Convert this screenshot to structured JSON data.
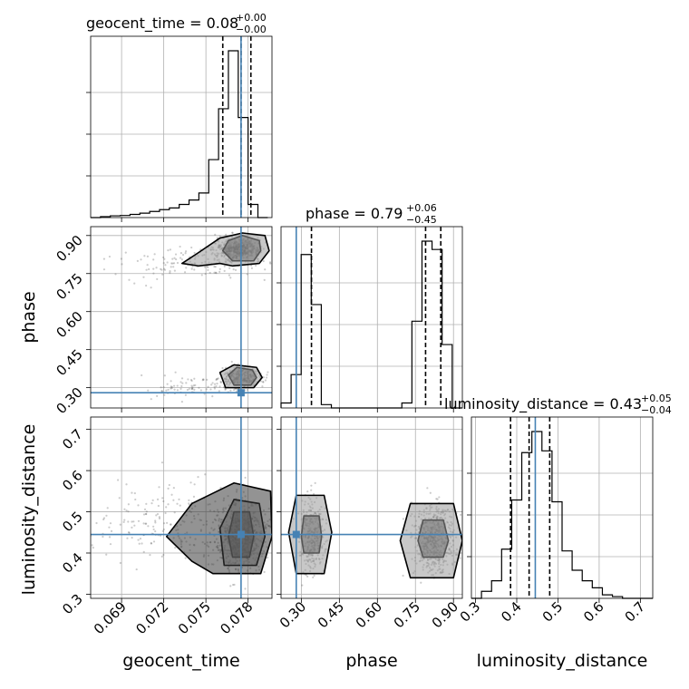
{
  "chart_data": {
    "type": "corner",
    "parameters": [
      "geocent_time",
      "phase",
      "luminosity_distance"
    ],
    "truth": {
      "geocent_time": 0.0775,
      "phase": 0.28,
      "luminosity_distance": 0.445
    },
    "axes": {
      "geocent_time": {
        "lim": [
          0.0668,
          0.0797
        ],
        "ticks": [
          "0.069",
          "0.072",
          "0.075",
          "0.078"
        ]
      },
      "phase": {
        "lim": [
          0.22,
          0.935
        ],
        "ticks": [
          "0.30",
          "0.45",
          "0.60",
          "0.75",
          "0.90"
        ]
      },
      "luminosity_distance": {
        "lim": [
          0.29,
          0.73
        ],
        "ticks": [
          "0.3",
          "0.4",
          "0.5",
          "0.6",
          "0.7"
        ]
      }
    },
    "titles": [
      {
        "param": "geocent_time",
        "label": "geocent_time = 0.08",
        "plus": "+0.00",
        "minus": "−0.00",
        "quantiles": [
          0.0762,
          0.0775,
          0.0782
        ]
      },
      {
        "param": "phase",
        "label": "phase = 0.79",
        "plus": "+0.06",
        "minus": "−0.45",
        "quantiles": [
          0.34,
          0.79,
          0.85
        ]
      },
      {
        "param": "luminosity_distance",
        "label": "luminosity_distance = 0.43",
        "plus": "+0.05",
        "minus": "−0.04",
        "quantiles": [
          0.385,
          0.43,
          0.48
        ]
      }
    ],
    "histograms": {
      "geocent_time": {
        "edges": [
          0.0668,
          0.0675,
          0.0682,
          0.0689,
          0.0696,
          0.0703,
          0.071,
          0.0717,
          0.0724,
          0.0731,
          0.0738,
          0.0745,
          0.0752,
          0.0759,
          0.0766,
          0.0773,
          0.078,
          0.0787,
          0.0794
        ],
        "counts": [
          0.0,
          0.005,
          0.01,
          0.012,
          0.018,
          0.025,
          0.035,
          0.045,
          0.055,
          0.075,
          0.1,
          0.14,
          0.33,
          0.62,
          0.95,
          0.57,
          0.075,
          0.0
        ]
      },
      "phase": {
        "edges": [
          0.22,
          0.2597,
          0.2994,
          0.3391,
          0.3788,
          0.4185,
          0.4582,
          0.4979,
          0.5376,
          0.5773,
          0.617,
          0.6567,
          0.6964,
          0.7361,
          0.7758,
          0.8155,
          0.8552,
          0.8949,
          0.935
        ],
        "counts": [
          0.03,
          0.2,
          0.92,
          0.62,
          0.02,
          0.0,
          0.0,
          0.0,
          0.0,
          0.0,
          0.0,
          0.0,
          0.03,
          0.52,
          1.0,
          0.95,
          0.38,
          0.0
        ]
      },
      "luminosity_distance": {
        "edges": [
          0.29,
          0.3144,
          0.3389,
          0.3633,
          0.3878,
          0.4122,
          0.4367,
          0.4611,
          0.4856,
          0.51,
          0.5344,
          0.5589,
          0.5833,
          0.6078,
          0.6322,
          0.6567,
          0.6811,
          0.7056,
          0.73
        ],
        "counts": [
          0.0,
          0.04,
          0.1,
          0.28,
          0.56,
          0.83,
          0.95,
          0.84,
          0.55,
          0.27,
          0.16,
          0.1,
          0.06,
          0.02,
          0.01,
          0.0,
          0.0,
          0.0
        ]
      }
    },
    "modes": {
      "phase_vs_geocent_time": [
        {
          "x": 0.0773,
          "y": 0.845,
          "sx": 0.0008,
          "sy": 0.02,
          "n": 500
        },
        {
          "x": 0.0775,
          "y": 0.34,
          "sx": 0.0007,
          "sy": 0.022,
          "n": 280
        },
        {
          "x": 0.0745,
          "y": 0.8,
          "sx": 0.003,
          "sy": 0.035,
          "n": 160,
          "tilt": 0.012
        },
        {
          "x": 0.074,
          "y": 0.3,
          "sx": 0.0018,
          "sy": 0.02,
          "n": 80
        }
      ],
      "luminosity_distance_vs_geocent_time": [
        {
          "x": 0.0775,
          "y": 0.44,
          "sx": 0.0009,
          "sy": 0.04,
          "n": 600
        },
        {
          "x": 0.0735,
          "y": 0.47,
          "sx": 0.0035,
          "sy": 0.045,
          "n": 250
        }
      ],
      "luminosity_distance_vs_phase": [
        {
          "x": 0.34,
          "y": 0.44,
          "sx": 0.025,
          "sy": 0.045,
          "n": 320
        },
        {
          "x": 0.82,
          "y": 0.43,
          "sx": 0.04,
          "sy": 0.045,
          "n": 520
        }
      ]
    },
    "contours": {
      "phase_vs_geocent_time": [
        [
          [
            0.0769,
            0.8
          ],
          [
            0.0784,
            0.8
          ],
          [
            0.0789,
            0.84
          ],
          [
            0.0788,
            0.88
          ],
          [
            0.0776,
            0.9
          ],
          [
            0.0766,
            0.88
          ],
          [
            0.0762,
            0.84
          ]
        ],
        [
          [
            0.076,
            0.79
          ],
          [
            0.0769,
            0.78
          ],
          [
            0.0788,
            0.79
          ],
          [
            0.0795,
            0.84
          ],
          [
            0.0792,
            0.9
          ],
          [
            0.0776,
            0.91
          ],
          [
            0.076,
            0.89
          ],
          [
            0.0744,
            0.83
          ],
          [
            0.0733,
            0.79
          ],
          [
            0.0745,
            0.78
          ]
        ],
        [
          [
            0.077,
            0.31
          ],
          [
            0.0782,
            0.31
          ],
          [
            0.0786,
            0.34
          ],
          [
            0.0783,
            0.37
          ],
          [
            0.0772,
            0.38
          ],
          [
            0.0766,
            0.35
          ]
        ],
        [
          [
            0.0764,
            0.3
          ],
          [
            0.0784,
            0.3
          ],
          [
            0.079,
            0.34
          ],
          [
            0.0786,
            0.38
          ],
          [
            0.077,
            0.39
          ],
          [
            0.076,
            0.36
          ]
        ]
      ],
      "luminosity_distance_vs_geocent_time": [
        [
          [
            0.0769,
            0.39
          ],
          [
            0.0781,
            0.39
          ],
          [
            0.0784,
            0.44
          ],
          [
            0.0781,
            0.5
          ],
          [
            0.077,
            0.5
          ],
          [
            0.0766,
            0.44
          ]
        ],
        [
          [
            0.0763,
            0.37
          ],
          [
            0.0786,
            0.37
          ],
          [
            0.0792,
            0.44
          ],
          [
            0.0788,
            0.52
          ],
          [
            0.077,
            0.53
          ],
          [
            0.076,
            0.46
          ]
        ],
        [
          [
            0.0755,
            0.35
          ],
          [
            0.0789,
            0.35
          ],
          [
            0.0797,
            0.44
          ],
          [
            0.0796,
            0.55
          ],
          [
            0.077,
            0.57
          ],
          [
            0.074,
            0.52
          ],
          [
            0.0722,
            0.44
          ],
          [
            0.074,
            0.38
          ]
        ]
      ],
      "luminosity_distance_vs_phase": [
        [
          [
            0.31,
            0.4
          ],
          [
            0.37,
            0.4
          ],
          [
            0.38,
            0.44
          ],
          [
            0.37,
            0.49
          ],
          [
            0.31,
            0.49
          ],
          [
            0.3,
            0.44
          ]
        ],
        [
          [
            0.28,
            0.35
          ],
          [
            0.39,
            0.35
          ],
          [
            0.42,
            0.45
          ],
          [
            0.39,
            0.54
          ],
          [
            0.28,
            0.54
          ],
          [
            0.25,
            0.45
          ]
        ],
        [
          [
            0.78,
            0.39
          ],
          [
            0.86,
            0.39
          ],
          [
            0.88,
            0.43
          ],
          [
            0.86,
            0.48
          ],
          [
            0.78,
            0.48
          ],
          [
            0.76,
            0.43
          ]
        ],
        [
          [
            0.73,
            0.34
          ],
          [
            0.9,
            0.34
          ],
          [
            0.935,
            0.43
          ],
          [
            0.9,
            0.52
          ],
          [
            0.73,
            0.52
          ],
          [
            0.69,
            0.43
          ]
        ]
      ]
    },
    "colors": {
      "truth": "#4682b4",
      "hist": "#000000",
      "contour": "#000000",
      "scatter": "#555555"
    }
  }
}
